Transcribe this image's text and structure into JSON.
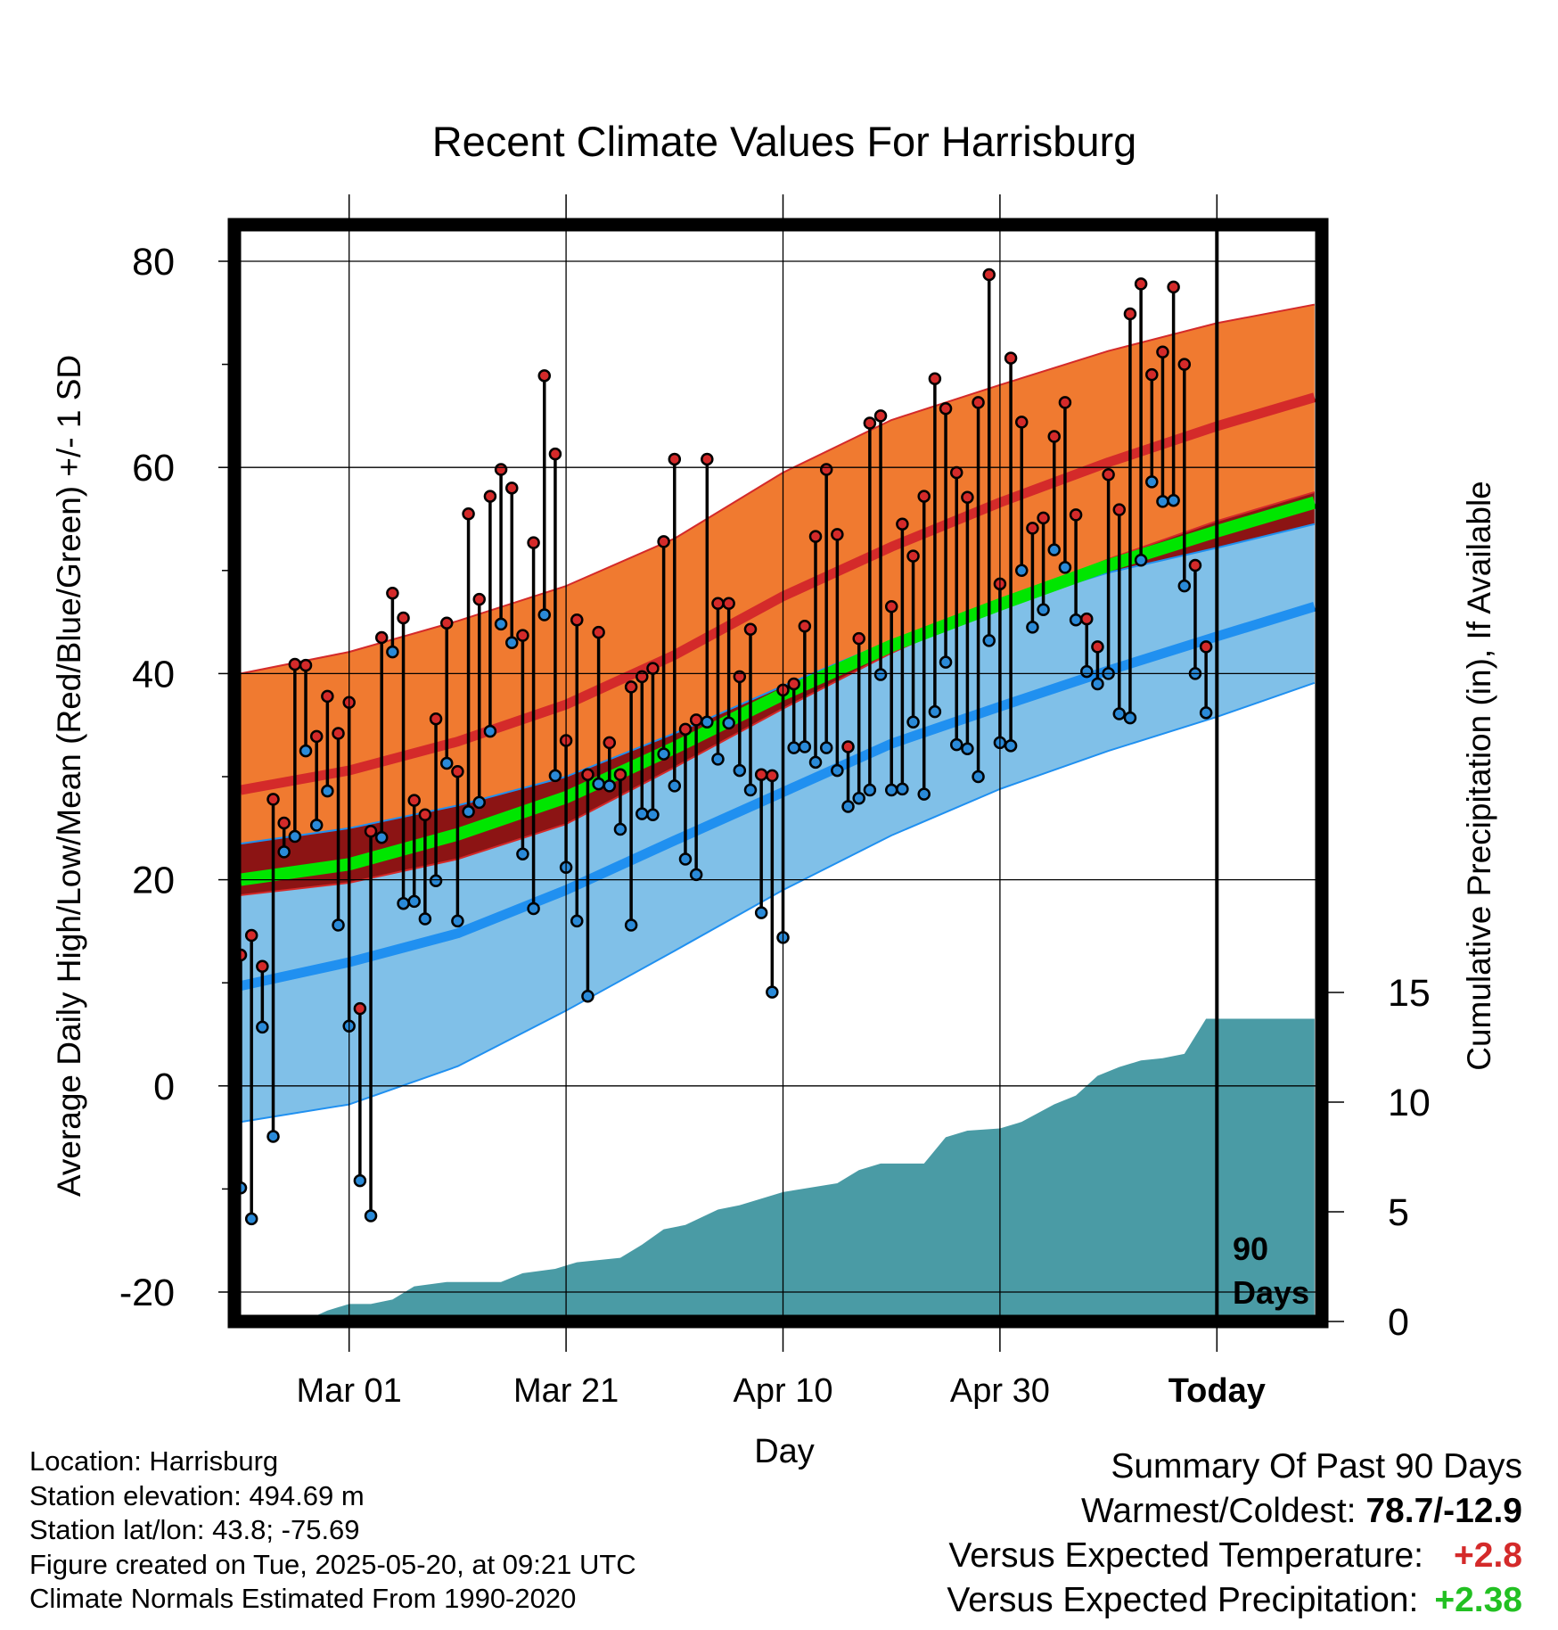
{
  "chart_data": {
    "type": "line",
    "title": "Recent Climate Values For Harrisburg",
    "xlabel": "Day",
    "ylabel": "Average Daily High/Low/Mean (Red/Blue/Green) +/- 1 SD",
    "y2label": "Cumulative Precipitation (in), If Available",
    "x_ticks": [
      "Mar 01",
      "Mar 21",
      "Apr 10",
      "Apr 30",
      "Today"
    ],
    "y_ticks": [
      "80",
      "60",
      "40",
      "20",
      "0",
      "-20"
    ],
    "y2_ticks": [
      "15",
      "10",
      "5",
      "0"
    ],
    "ylim": [
      -22,
      85
    ],
    "y2lim": [
      0,
      28
    ],
    "x_range_days": [
      "2025-02-19",
      "2025-05-29"
    ],
    "today": "2025-05-20",
    "today_marker_label": [
      "90",
      "Days"
    ],
    "grid": true,
    "normals": {
      "dates": [
        "2025-02-19",
        "2025-03-01",
        "2025-03-11",
        "2025-03-21",
        "2025-03-31",
        "2025-04-10",
        "2025-04-20",
        "2025-04-30",
        "2025-05-10",
        "2025-05-20",
        "2025-05-29"
      ],
      "high_mean": [
        28.7,
        30.6,
        33.4,
        37.0,
        41.8,
        47.5,
        52.3,
        56.6,
        60.5,
        64.0,
        66.8
      ],
      "high_upper": [
        40.0,
        42.1,
        45.1,
        48.5,
        53.1,
        59.5,
        64.6,
        68.0,
        71.3,
        74.0,
        75.8
      ],
      "high_lower": [
        18.5,
        19.7,
        22.0,
        25.4,
        30.9,
        36.6,
        42.0,
        46.7,
        51.1,
        54.8,
        57.6
      ],
      "low_mean": [
        9.7,
        12.0,
        14.8,
        19.0,
        23.8,
        28.5,
        33.2,
        36.8,
        40.3,
        43.6,
        46.5
      ],
      "low_upper": [
        23.5,
        25.0,
        27.2,
        30.0,
        34.2,
        38.8,
        43.2,
        46.6,
        49.8,
        52.2,
        54.5
      ],
      "low_lower": [
        -3.5,
        -1.8,
        1.9,
        7.3,
        13.1,
        19.0,
        24.3,
        28.8,
        32.5,
        35.8,
        39.1
      ],
      "mean": [
        20.0,
        21.5,
        24.4,
        28.0,
        32.8,
        38.0,
        42.7,
        46.7,
        50.5,
        53.8,
        56.6
      ]
    },
    "series": [
      {
        "name": "High",
        "values": [
          12.7,
          14.6,
          11.6,
          27.8,
          25.5,
          40.9,
          40.8,
          33.9,
          37.8,
          34.2,
          37.2,
          7.5,
          24.7,
          43.5,
          47.8,
          45.4,
          27.7,
          26.3,
          35.6,
          44.9,
          30.5,
          55.5,
          47.2,
          57.2,
          59.8,
          58.0,
          43.7,
          52.7,
          68.9,
          61.3,
          33.5,
          45.2,
          30.2,
          44.0,
          33.3,
          30.2,
          38.7,
          39.7,
          40.5,
          52.8,
          60.8,
          34.6,
          35.5,
          60.8,
          46.8,
          46.8,
          39.7,
          44.3,
          30.2,
          30.1,
          38.4,
          39.0,
          44.6,
          53.3,
          59.8,
          53.5,
          32.9,
          43.4,
          64.3,
          65.0,
          46.5,
          54.5,
          51.4,
          57.2,
          68.6,
          65.7,
          59.5,
          57.1,
          66.3,
          78.7,
          48.7,
          70.6,
          64.4,
          54.1,
          55.1,
          63.0,
          66.3,
          55.4,
          45.3,
          42.6,
          59.3,
          55.9,
          74.9,
          77.8,
          69.0,
          71.2,
          77.5,
          70.0,
          50.5,
          42.6
        ]
      },
      {
        "name": "Low",
        "values": [
          -9.9,
          -12.9,
          5.7,
          -4.9,
          22.7,
          24.2,
          32.5,
          25.3,
          28.6,
          15.6,
          5.8,
          -9.2,
          -12.6,
          24.1,
          42.1,
          17.7,
          17.9,
          16.2,
          19.9,
          31.3,
          16.0,
          26.6,
          27.5,
          34.4,
          44.8,
          43.0,
          22.5,
          17.2,
          45.7,
          30.1,
          21.2,
          16.0,
          8.7,
          29.3,
          29.1,
          24.9,
          15.6,
          26.4,
          26.3,
          32.2,
          29.1,
          22.0,
          20.5,
          35.3,
          31.7,
          35.2,
          30.6,
          28.7,
          16.8,
          9.1,
          14.4,
          32.8,
          32.9,
          31.4,
          32.8,
          30.6,
          27.1,
          27.9,
          28.7,
          39.9,
          28.7,
          28.8,
          35.3,
          28.3,
          36.3,
          41.1,
          33.1,
          32.7,
          30.0,
          43.2,
          33.3,
          33.0,
          50.0,
          44.5,
          46.2,
          52.0,
          50.3,
          45.2,
          40.2,
          39.0,
          40.0,
          36.1,
          35.7,
          51.0,
          58.6,
          56.7,
          56.8,
          48.5,
          40.0,
          36.2
        ]
      }
    ],
    "precip_cumulative": {
      "dates": [
        "2025-02-20",
        "2025-02-25",
        "2025-02-27",
        "2025-03-01",
        "2025-03-03",
        "2025-03-05",
        "2025-03-07",
        "2025-03-10",
        "2025-03-15",
        "2025-03-17",
        "2025-03-20",
        "2025-03-22",
        "2025-03-26",
        "2025-03-28",
        "2025-03-30",
        "2025-04-01",
        "2025-04-04",
        "2025-04-06",
        "2025-04-08",
        "2025-04-10",
        "2025-04-15",
        "2025-04-17",
        "2025-04-19",
        "2025-04-23",
        "2025-04-25",
        "2025-04-27",
        "2025-04-30",
        "2025-05-02",
        "2025-05-05",
        "2025-05-07",
        "2025-05-09",
        "2025-05-11",
        "2025-05-13",
        "2025-05-15",
        "2025-05-17",
        "2025-05-19",
        "2025-05-29"
      ],
      "values": [
        0.0,
        0.05,
        0.5,
        0.8,
        0.8,
        1.0,
        1.6,
        1.8,
        1.8,
        2.2,
        2.4,
        2.7,
        2.9,
        3.5,
        4.2,
        4.4,
        5.1,
        5.3,
        5.6,
        5.9,
        6.3,
        6.9,
        7.2,
        7.2,
        8.4,
        8.7,
        8.8,
        9.1,
        9.9,
        10.3,
        11.2,
        11.6,
        11.9,
        12.0,
        12.2,
        13.8,
        13.8
      ]
    }
  },
  "footer": {
    "location": "Location: Harrisburg",
    "elevation": "Station elevation: 494.69 m",
    "latlon": "Station lat/lon: 43.8; -75.69",
    "created": "Figure created on Tue, 2025-05-20, at 09:21 UTC",
    "normals": "Climate Normals Estimated From 1990-2020"
  },
  "summary": {
    "heading": "Summary Of Past 90 Days",
    "warmest_label": "Warmest/Coldest:",
    "warmest_value": "78.7/-12.9",
    "temp_label": "Versus Expected Temperature:",
    "temp_value": "+2.8",
    "precip_label": "Versus Expected Precipitation:",
    "precip_value": "+2.38"
  },
  "colors": {
    "high_band": "#f07a30",
    "high_mean_line": "#d42a2a",
    "low_band": "#80c0e8",
    "low_mean_line": "#2090f0",
    "mean_line": "#00e600",
    "overlap_band": "#8c1414",
    "precip_fill": "#4a9ba5",
    "high_point": "#d42a2a",
    "low_point": "#2a8ad8",
    "temp_positive": "#d42a2a",
    "precip_positive": "#22c022"
  }
}
